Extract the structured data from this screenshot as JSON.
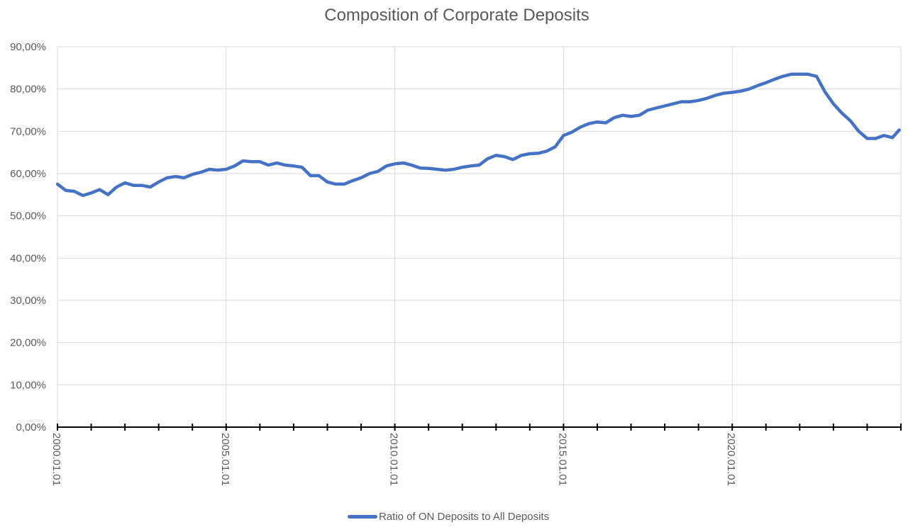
{
  "chart_data": {
    "type": "line",
    "title": "Composition of Corporate Deposits",
    "xlabel": "",
    "ylabel": "",
    "ylim": [
      0,
      90
    ],
    "y_ticks": [
      "0,00%",
      "10,00%",
      "20,00%",
      "30,00%",
      "40,00%",
      "50,00%",
      "60,00%",
      "70,00%",
      "80,00%",
      "90,00%"
    ],
    "x_tick_labels": [
      "2000.01.01",
      "2005.01.01",
      "2010.01.01",
      "2015.01.01",
      "2020.01.01"
    ],
    "x_range": [
      "2000.01",
      "2024.12"
    ],
    "grid": true,
    "legend_position": "bottom",
    "series": [
      {
        "name": "Ratio of ON Deposits to All Deposits",
        "color": "#4472C4",
        "x": [
          2000.0,
          2000.25,
          2000.5,
          2000.75,
          2001.0,
          2001.25,
          2001.5,
          2001.75,
          2002.0,
          2002.25,
          2002.5,
          2002.75,
          2003.0,
          2003.25,
          2003.5,
          2003.75,
          2004.0,
          2004.25,
          2004.5,
          2004.75,
          2005.0,
          2005.25,
          2005.5,
          2005.75,
          2006.0,
          2006.25,
          2006.5,
          2006.75,
          2007.0,
          2007.25,
          2007.5,
          2007.75,
          2008.0,
          2008.25,
          2008.5,
          2008.75,
          2009.0,
          2009.25,
          2009.5,
          2009.75,
          2010.0,
          2010.25,
          2010.5,
          2010.75,
          2011.0,
          2011.25,
          2011.5,
          2011.75,
          2012.0,
          2012.25,
          2012.5,
          2012.75,
          2013.0,
          2013.25,
          2013.5,
          2013.75,
          2014.0,
          2014.25,
          2014.5,
          2014.75,
          2015.0,
          2015.25,
          2015.5,
          2015.75,
          2016.0,
          2016.25,
          2016.5,
          2016.75,
          2017.0,
          2017.25,
          2017.5,
          2017.75,
          2018.0,
          2018.25,
          2018.5,
          2018.75,
          2019.0,
          2019.25,
          2019.5,
          2019.75,
          2020.0,
          2020.25,
          2020.5,
          2020.75,
          2021.0,
          2021.25,
          2021.5,
          2021.75,
          2022.0,
          2022.25,
          2022.5,
          2022.75,
          2023.0,
          2023.25,
          2023.5,
          2023.75,
          2024.0,
          2024.25,
          2024.5,
          2024.75,
          2024.95
        ],
        "values": [
          57.5,
          56.0,
          55.8,
          54.8,
          55.4,
          56.2,
          55.0,
          56.8,
          57.8,
          57.2,
          57.2,
          56.8,
          58.0,
          59.0,
          59.3,
          59.0,
          59.8,
          60.3,
          61.0,
          60.8,
          61.0,
          61.8,
          63.0,
          62.8,
          62.8,
          62.0,
          62.5,
          62.0,
          61.8,
          61.5,
          59.5,
          59.5,
          58.0,
          57.5,
          57.5,
          58.3,
          59.0,
          60.0,
          60.5,
          61.8,
          62.3,
          62.5,
          62.0,
          61.3,
          61.2,
          61.0,
          60.8,
          61.0,
          61.5,
          61.8,
          62.0,
          63.5,
          64.3,
          64.0,
          63.3,
          64.3,
          64.7,
          64.8,
          65.3,
          66.3,
          69.0,
          69.8,
          71.0,
          71.8,
          72.2,
          72.0,
          73.2,
          73.8,
          73.5,
          73.8,
          75.0,
          75.5,
          76.0,
          76.5,
          77.0,
          77.0,
          77.3,
          77.8,
          78.5,
          79.0,
          79.2,
          79.5,
          80.0,
          80.8,
          81.5,
          82.3,
          83.0,
          83.5,
          83.5,
          83.5,
          83.0,
          79.3,
          76.5,
          74.3,
          72.5,
          70.0,
          68.3,
          68.3,
          69.0,
          68.5,
          70.3
        ]
      }
    ]
  },
  "legend": {
    "label": "Ratio of ON Deposits to All Deposits"
  }
}
